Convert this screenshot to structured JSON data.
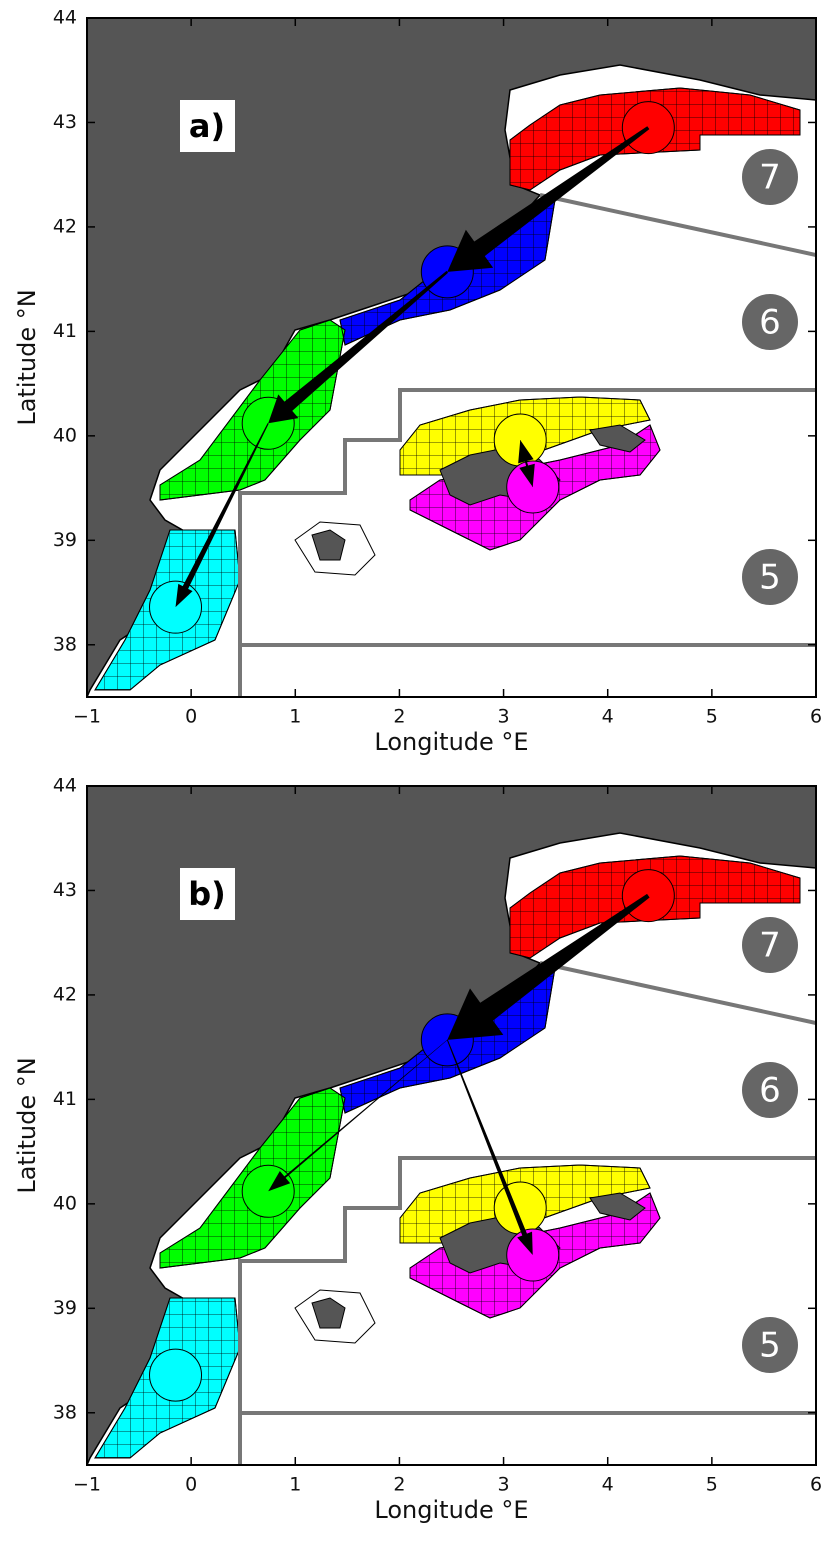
{
  "panels": [
    {
      "label": "a)",
      "xlabel": "Longitude °E",
      "ylabel": "Latitude °N"
    },
    {
      "label": "b)",
      "xlabel": "Longitude °E",
      "ylabel": "Latitude °N"
    }
  ],
  "xlim": [
    -1,
    6
  ],
  "ylim": [
    37.5,
    44
  ],
  "xticks": [
    {
      "value": -1,
      "label": "−1"
    },
    0,
    1,
    2,
    3,
    4,
    5,
    6
  ],
  "yticks": [
    38,
    39,
    40,
    41,
    42,
    43,
    44
  ],
  "zones": [
    "7",
    "6",
    "5"
  ],
  "areas": [
    {
      "color": "#ff0000",
      "lon": 4.39,
      "lat": 42.95
    },
    {
      "color": "#0000ff",
      "lon": 2.46,
      "lat": 41.57
    },
    {
      "color": "#00ff00",
      "lon": 0.74,
      "lat": 40.12
    },
    {
      "color": "#00ffff",
      "lon": -0.15,
      "lat": 38.36
    },
    {
      "color": "#ffff00",
      "lon": 3.16,
      "lat": 39.96
    },
    {
      "color": "#ff00ff",
      "lon": 3.28,
      "lat": 39.51
    }
  ]
}
